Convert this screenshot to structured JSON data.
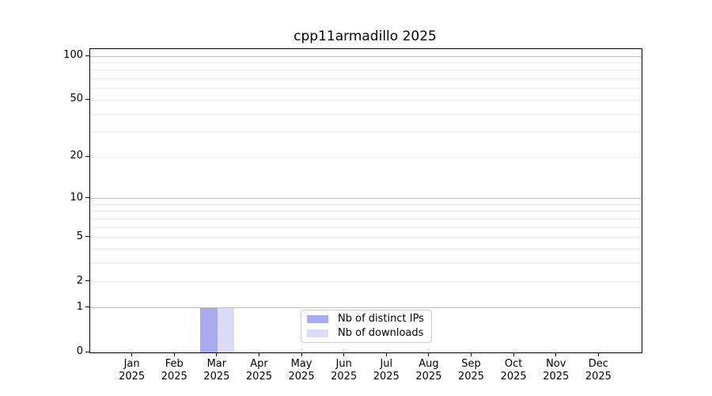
{
  "title": "cpp11armadillo 2025",
  "colors": {
    "distinct_ips": "#aaaaf0",
    "downloads": "#dcdcf8",
    "grid_major": "#bdbdbd",
    "grid_minor": "#ebebeb",
    "axis": "#000000",
    "legend_border": "#cccccc",
    "background": "#ffffff"
  },
  "legend": {
    "items": [
      {
        "label": "Nb of distinct IPs",
        "color": "#aaaaf0"
      },
      {
        "label": "Nb of downloads",
        "color": "#dcdcf8"
      }
    ]
  },
  "chart_data": {
    "type": "bar",
    "title": "cpp11armadillo 2025",
    "categories": [
      "Jan",
      "Feb",
      "Mar",
      "Apr",
      "May",
      "Jun",
      "Jul",
      "Aug",
      "Sep",
      "Oct",
      "Nov",
      "Dec"
    ],
    "year_label": "2025",
    "series": [
      {
        "name": "Nb of distinct IPs",
        "color": "#aaaaf0",
        "values": [
          0,
          0,
          1,
          0,
          0,
          0,
          0,
          0,
          0,
          0,
          0,
          0
        ]
      },
      {
        "name": "Nb of downloads",
        "color": "#dcdcf8",
        "values": [
          0,
          0,
          1,
          0,
          0,
          0,
          0,
          0,
          0,
          0,
          0,
          0
        ]
      }
    ],
    "xlabel": "",
    "ylabel": "",
    "y_scale": "log1p",
    "ylim": [
      0,
      112
    ],
    "y_ticks": [
      0,
      1,
      2,
      5,
      10,
      20,
      50,
      100
    ],
    "y_gridlines_major": [
      1,
      10,
      100
    ],
    "y_gridlines_minor": [
      2,
      3,
      4,
      5,
      6,
      7,
      8,
      9,
      20,
      30,
      40,
      50,
      60,
      70,
      80,
      90
    ],
    "grid": "horizontal",
    "legend_position": "lower-center-inside"
  }
}
